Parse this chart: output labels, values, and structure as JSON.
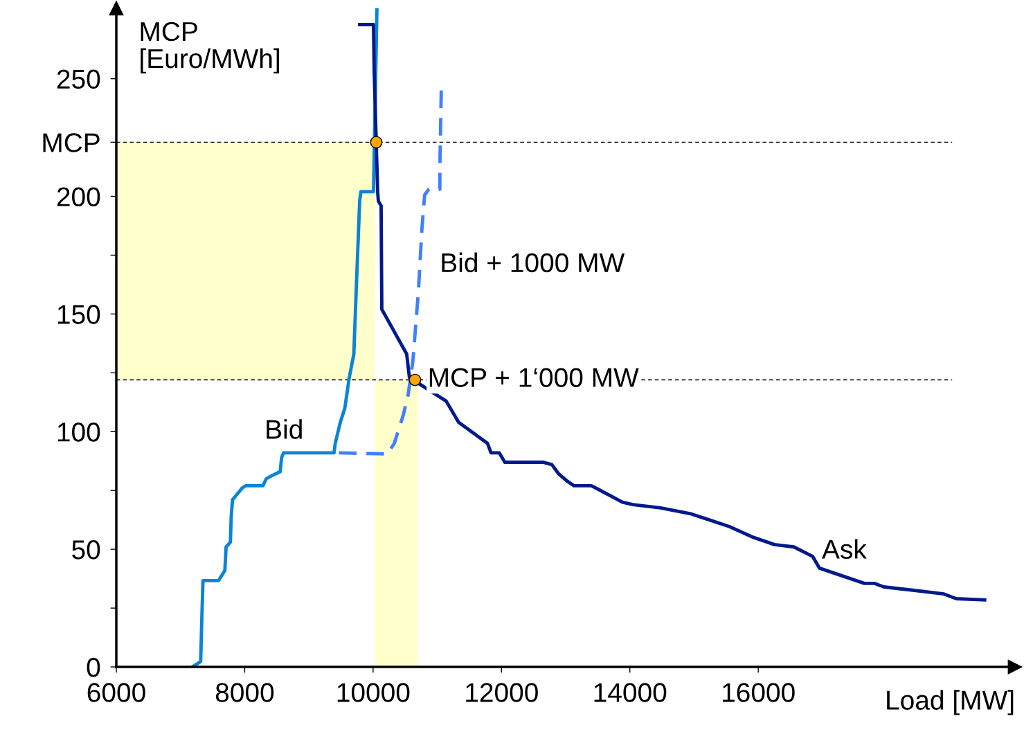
{
  "chart_data": {
    "type": "line",
    "xlabel": "Load [MW]",
    "ylabel": "MCP\n[Euro/MWh]",
    "xlim": [
      6000,
      20000
    ],
    "ylim": [
      0,
      280
    ],
    "xticks": [
      6000,
      8000,
      10000,
      12000,
      14000,
      16000
    ],
    "yticks": [
      0,
      {
        "value": 25,
        "label": null
      },
      50,
      {
        "value": 75,
        "label": null
      },
      100,
      {
        "value": 125,
        "label": null
      },
      150,
      {
        "value": 175,
        "label": null
      },
      200,
      {
        "value": 223,
        "label": "MCP"
      },
      250
    ],
    "grid": false,
    "legend": false,
    "series": [
      {
        "name": "Bid",
        "color": "#0a84d6",
        "line_style": "solid",
        "x": [
          7185,
          7314,
          7330,
          7350,
          7594,
          7691,
          7710,
          7777,
          7790,
          7810,
          7960,
          8014,
          8283,
          8337,
          8400,
          8553,
          8575,
          8606,
          9392,
          9410,
          9490,
          9560,
          9629,
          9700,
          9737,
          9791,
          9810,
          10006,
          10060
        ],
        "values": [
          0,
          2.3,
          18.5,
          36.7,
          36.7,
          41,
          51,
          53,
          64,
          71,
          76,
          77,
          77,
          80,
          81,
          83,
          89,
          91,
          91,
          95,
          104,
          110,
          123,
          133,
          160,
          198,
          202,
          202,
          280
        ]
      },
      {
        "name": "Bid + 1000 MW",
        "color": "#4080ff",
        "line_style": "dashed",
        "x": [
          9468,
          10222,
          10330,
          10470,
          10545,
          10620,
          10706,
          10760,
          10803,
          10868,
          11040,
          11040,
          11062
        ],
        "values": [
          91,
          90.5,
          95,
          107,
          115.5,
          130,
          159.5,
          186,
          200.6,
          203,
          203,
          212,
          245
        ]
      },
      {
        "name": "Ask",
        "color": "#001a8c",
        "line_style": "solid",
        "x": [
          9791,
          10006,
          10017,
          10071,
          10082,
          10125,
          10136,
          10523,
          10566,
          11138,
          11332,
          11783,
          11837,
          11966,
          12052,
          12645,
          12785,
          12893,
          13022,
          13130,
          13399,
          13507,
          13884,
          14046,
          14477,
          14961,
          15554,
          15930,
          16253,
          16555,
          16846,
          16953,
          17653,
          17815,
          17955,
          18407,
          18892,
          19086,
          19527
        ],
        "values": [
          273,
          273,
          253.5,
          202,
          198,
          196,
          152,
          133,
          123,
          113,
          104,
          95,
          91,
          91,
          87,
          87,
          86,
          82,
          79,
          77,
          77,
          75.5,
          70,
          69,
          67.6,
          65,
          59.6,
          55,
          52,
          51,
          47,
          42,
          35.5,
          35.5,
          34,
          32.6,
          31,
          29,
          28.5
        ]
      },
      {
        "type": "scatter",
        "marker": "circle",
        "color": "#ffa500",
        "x": [
          10050,
          10653
        ],
        "values": [
          223,
          122
        ]
      }
    ],
    "ref_lines": [
      {
        "axis": "y",
        "value": 223,
        "label": null,
        "color": "#000000",
        "line_style": "dashed"
      },
      {
        "axis": "y",
        "value": 122,
        "label": "MCP + 1‘000 MW",
        "color": "#000000",
        "line_style": "dashed"
      }
    ],
    "bands": [
      {
        "axis": "y",
        "from": 122,
        "to": 223,
        "color": "#ffffcc"
      },
      {
        "axis": "x",
        "from": 10030,
        "to": 10700,
        "color": "#ffffcc"
      }
    ]
  }
}
